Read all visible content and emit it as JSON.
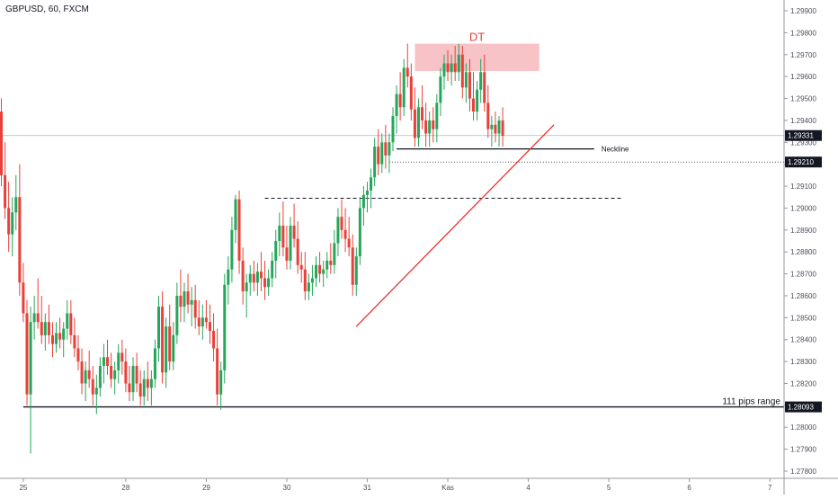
{
  "symbol_label": "GBPUSD, 60, FXCM",
  "colors": {
    "up": "#26a65b",
    "down": "#e8413a",
    "trendline": "#e8312e",
    "zone": "#f5a3a8",
    "zone_text": "#e8413a",
    "axis_text": "#4a4e59",
    "tag_bg": "#131722",
    "tag_text": "#ffffff",
    "grid": "#b2b5be"
  },
  "chart_data": {
    "type": "candlestick",
    "xlabel": "",
    "ylabel": "",
    "ylim": [
      1.277,
      1.2995
    ],
    "x_ticks": [
      {
        "label": "25",
        "index": 6
      },
      {
        "label": "28",
        "index": 34
      },
      {
        "label": "29",
        "index": 56
      },
      {
        "label": "30",
        "index": 78
      },
      {
        "label": "31",
        "index": 100
      },
      {
        "label": "Kas",
        "index": 122
      },
      {
        "label": "4",
        "index": 144
      },
      {
        "label": "5",
        "index": 166
      },
      {
        "label": "6",
        "index": 188
      },
      {
        "label": "7",
        "index": 210
      }
    ],
    "y_ticks": [
      "1.27800",
      "1.27900",
      "1.28000",
      "1.28100",
      "1.28200",
      "1.28300",
      "1.28400",
      "1.28500",
      "1.28600",
      "1.28700",
      "1.28800",
      "1.28900",
      "1.29000",
      "1.29100",
      "1.29200",
      "1.29300",
      "1.29400",
      "1.29500",
      "1.29600",
      "1.29700",
      "1.29800",
      "1.29900"
    ],
    "price_tags": [
      {
        "label": "1.29331",
        "value": 1.29331
      },
      {
        "label": "1.29210",
        "value": 1.2921
      },
      {
        "label": "1.28093",
        "value": 1.28093
      }
    ],
    "annotations": {
      "zone": {
        "label": "DT",
        "x_start": 113,
        "x_end": 147,
        "y_low": 1.29625,
        "y_high": 1.2975
      },
      "neckline": {
        "label": "Neckline",
        "x_start": 108,
        "x_end": 162,
        "y": 1.2927
      },
      "support": {
        "label": "111 pips range",
        "x_start": 6,
        "x_end": 232,
        "y": 1.28093
      },
      "resistance_dashed": {
        "x_start": 72,
        "x_end": 170,
        "y": 1.29045
      },
      "level_dotted": {
        "x_start": 106,
        "x_end": 232,
        "y": 1.2921
      },
      "trendline": {
        "x1": 97,
        "y1": 1.2846,
        "x2": 151,
        "y2": 1.2938
      }
    },
    "candles": [
      [
        0,
        1.2944,
        1.295,
        1.291,
        1.2915
      ],
      [
        1,
        1.2915,
        1.293,
        1.2895,
        1.29
      ],
      [
        2,
        1.29,
        1.2912,
        1.288,
        1.2888
      ],
      [
        3,
        1.2888,
        1.2905,
        1.2878,
        1.2898
      ],
      [
        4,
        1.2898,
        1.2915,
        1.289,
        1.2905
      ],
      [
        5,
        1.2905,
        1.292,
        1.286,
        1.2866
      ],
      [
        6,
        1.2866,
        1.2875,
        1.2848,
        1.2852
      ],
      [
        7,
        1.2852,
        1.2858,
        1.281,
        1.2815
      ],
      [
        8,
        1.2815,
        1.2855,
        1.2788,
        1.2848
      ],
      [
        9,
        1.2848,
        1.286,
        1.284,
        1.2852
      ],
      [
        10,
        1.2852,
        1.2868,
        1.2845,
        1.2848
      ],
      [
        11,
        1.2848,
        1.286,
        1.2838,
        1.2842
      ],
      [
        12,
        1.2842,
        1.2852,
        1.2835,
        1.2848
      ],
      [
        13,
        1.2848,
        1.2856,
        1.2838,
        1.2842
      ],
      [
        14,
        1.2842,
        1.2848,
        1.2832,
        1.2838
      ],
      [
        15,
        1.2838,
        1.2848,
        1.2834,
        1.2843
      ],
      [
        16,
        1.2843,
        1.285,
        1.2836,
        1.284
      ],
      [
        17,
        1.284,
        1.2848,
        1.2832,
        1.2845
      ],
      [
        18,
        1.2845,
        1.2858,
        1.284,
        1.2852
      ],
      [
        19,
        1.2852,
        1.2858,
        1.2838,
        1.2842
      ],
      [
        20,
        1.2842,
        1.285,
        1.2832,
        1.2836
      ],
      [
        21,
        1.2836,
        1.2842,
        1.2826,
        1.283
      ],
      [
        22,
        1.283,
        1.2836,
        1.2815,
        1.282
      ],
      [
        23,
        1.282,
        1.283,
        1.2812,
        1.2826
      ],
      [
        24,
        1.2826,
        1.2835,
        1.2818,
        1.2822
      ],
      [
        25,
        1.2822,
        1.2828,
        1.281,
        1.2815
      ],
      [
        26,
        1.2815,
        1.2824,
        1.2806,
        1.2818
      ],
      [
        27,
        1.2818,
        1.2832,
        1.2814,
        1.2828
      ],
      [
        28,
        1.2828,
        1.2838,
        1.282,
        1.2832
      ],
      [
        29,
        1.2832,
        1.284,
        1.2824,
        1.2828
      ],
      [
        30,
        1.2828,
        1.2834,
        1.2818,
        1.2822
      ],
      [
        31,
        1.2822,
        1.283,
        1.2815,
        1.2826
      ],
      [
        32,
        1.2826,
        1.2838,
        1.282,
        1.2834
      ],
      [
        33,
        1.2834,
        1.284,
        1.2824,
        1.283
      ],
      [
        34,
        1.283,
        1.2836,
        1.2816,
        1.282
      ],
      [
        35,
        1.282,
        1.2828,
        1.2812,
        1.2816
      ],
      [
        36,
        1.2816,
        1.2832,
        1.2812,
        1.2828
      ],
      [
        37,
        1.2828,
        1.2834,
        1.2816,
        1.282
      ],
      [
        38,
        1.282,
        1.2826,
        1.281,
        1.2814
      ],
      [
        39,
        1.2814,
        1.2826,
        1.281,
        1.2822
      ],
      [
        40,
        1.2822,
        1.283,
        1.2812,
        1.2818
      ],
      [
        41,
        1.2818,
        1.2826,
        1.281,
        1.2822
      ],
      [
        42,
        1.2822,
        1.284,
        1.2818,
        1.2836
      ],
      [
        43,
        1.2836,
        1.286,
        1.283,
        1.2855
      ],
      [
        44,
        1.2855,
        1.2862,
        1.282,
        1.2825
      ],
      [
        45,
        1.2825,
        1.285,
        1.2818,
        1.2846
      ],
      [
        46,
        1.2846,
        1.2856,
        1.2826,
        1.283
      ],
      [
        47,
        1.283,
        1.2848,
        1.2826,
        1.2842
      ],
      [
        48,
        1.2842,
        1.2866,
        1.2838,
        1.286
      ],
      [
        49,
        1.286,
        1.2872,
        1.2848,
        1.2855
      ],
      [
        50,
        1.2855,
        1.2866,
        1.2848,
        1.2862
      ],
      [
        51,
        1.2862,
        1.287,
        1.2852,
        1.2856
      ],
      [
        52,
        1.2856,
        1.2864,
        1.2846,
        1.2858
      ],
      [
        53,
        1.2858,
        1.2865,
        1.2845,
        1.285
      ],
      [
        54,
        1.285,
        1.2858,
        1.2842,
        1.2846
      ],
      [
        55,
        1.2846,
        1.2856,
        1.284,
        1.285
      ],
      [
        56,
        1.285,
        1.2858,
        1.2845,
        1.2848
      ],
      [
        57,
        1.2848,
        1.2856,
        1.2838,
        1.2844
      ],
      [
        58,
        1.2844,
        1.2852,
        1.283,
        1.2836
      ],
      [
        59,
        1.2836,
        1.2845,
        1.281,
        1.2815
      ],
      [
        60,
        1.2815,
        1.283,
        1.2808,
        1.2826
      ],
      [
        61,
        1.2826,
        1.287,
        1.282,
        1.2865
      ],
      [
        62,
        1.2865,
        1.2878,
        1.2856,
        1.2872
      ],
      [
        63,
        1.2872,
        1.2896,
        1.2866,
        1.289
      ],
      [
        64,
        1.289,
        1.2906,
        1.2884,
        1.2904
      ],
      [
        65,
        1.2904,
        1.2908,
        1.287,
        1.2876
      ],
      [
        66,
        1.2876,
        1.2882,
        1.2856,
        1.2862
      ],
      [
        67,
        1.2862,
        1.287,
        1.285,
        1.2866
      ],
      [
        68,
        1.2866,
        1.2874,
        1.286,
        1.287
      ],
      [
        69,
        1.287,
        1.2876,
        1.2862,
        1.2866
      ],
      [
        70,
        1.2866,
        1.2875,
        1.286,
        1.2871
      ],
      [
        71,
        1.2871,
        1.288,
        1.2862,
        1.2868
      ],
      [
        72,
        1.2868,
        1.2876,
        1.2858,
        1.2864
      ],
      [
        73,
        1.2864,
        1.2872,
        1.286,
        1.2868
      ],
      [
        74,
        1.2868,
        1.288,
        1.2864,
        1.2876
      ],
      [
        75,
        1.2876,
        1.289,
        1.2868,
        1.2885
      ],
      [
        76,
        1.2885,
        1.2898,
        1.2878,
        1.2892
      ],
      [
        77,
        1.2892,
        1.2903,
        1.2878,
        1.2882
      ],
      [
        78,
        1.2882,
        1.2892,
        1.2872,
        1.2876
      ],
      [
        79,
        1.2876,
        1.2896,
        1.2872,
        1.2892
      ],
      [
        80,
        1.2892,
        1.2902,
        1.2882,
        1.2886
      ],
      [
        81,
        1.2886,
        1.2894,
        1.287,
        1.2874
      ],
      [
        82,
        1.2874,
        1.288,
        1.2866,
        1.2872
      ],
      [
        83,
        1.2872,
        1.288,
        1.2858,
        1.2862
      ],
      [
        84,
        1.2862,
        1.287,
        1.2858,
        1.2866
      ],
      [
        85,
        1.2866,
        1.2874,
        1.286,
        1.2868
      ],
      [
        86,
        1.2868,
        1.2878,
        1.2864,
        1.2874
      ],
      [
        87,
        1.2874,
        1.288,
        1.2866,
        1.287
      ],
      [
        88,
        1.287,
        1.2876,
        1.2864,
        1.2872
      ],
      [
        89,
        1.2872,
        1.288,
        1.2868,
        1.2876
      ],
      [
        90,
        1.2876,
        1.2884,
        1.287,
        1.2874
      ],
      [
        91,
        1.2874,
        1.289,
        1.287,
        1.2884
      ],
      [
        92,
        1.2884,
        1.29,
        1.2878,
        1.2896
      ],
      [
        93,
        1.2896,
        1.2904,
        1.2886,
        1.289
      ],
      [
        94,
        1.289,
        1.29,
        1.288,
        1.2886
      ],
      [
        95,
        1.2886,
        1.2896,
        1.2878,
        1.2882
      ],
      [
        96,
        1.2882,
        1.2888,
        1.286,
        1.2865
      ],
      [
        97,
        1.2865,
        1.2882,
        1.286,
        1.2878
      ],
      [
        98,
        1.2878,
        1.2905,
        1.2874,
        1.29
      ],
      [
        99,
        1.29,
        1.291,
        1.2892,
        1.2906
      ],
      [
        100,
        1.2906,
        1.2912,
        1.2898,
        1.2908
      ],
      [
        101,
        1.2908,
        1.2918,
        1.29,
        1.2914
      ],
      [
        102,
        1.2914,
        1.2932,
        1.291,
        1.2928
      ],
      [
        103,
        1.2928,
        1.2936,
        1.2915,
        1.292
      ],
      [
        104,
        1.292,
        1.2934,
        1.2916,
        1.293
      ],
      [
        105,
        1.293,
        1.2938,
        1.2918,
        1.2924
      ],
      [
        106,
        1.2924,
        1.2934,
        1.2916,
        1.293
      ],
      [
        107,
        1.293,
        1.2946,
        1.2926,
        1.2942
      ],
      [
        108,
        1.2942,
        1.2956,
        1.2934,
        1.2952
      ],
      [
        109,
        1.2952,
        1.2962,
        1.294,
        1.2946
      ],
      [
        110,
        1.2946,
        1.2968,
        1.2942,
        1.2964
      ],
      [
        111,
        1.2964,
        1.2975,
        1.2955,
        1.296
      ],
      [
        112,
        1.296,
        1.2966,
        1.294,
        1.2945
      ],
      [
        113,
        1.2945,
        1.2955,
        1.2928,
        1.2932
      ],
      [
        114,
        1.2932,
        1.295,
        1.2928,
        1.2946
      ],
      [
        115,
        1.2946,
        1.2956,
        1.2936,
        1.294
      ],
      [
        116,
        1.294,
        1.2948,
        1.2928,
        1.2934
      ],
      [
        117,
        1.2934,
        1.2944,
        1.2928,
        1.294
      ],
      [
        118,
        1.294,
        1.2946,
        1.293,
        1.2936
      ],
      [
        119,
        1.2936,
        1.2952,
        1.293,
        1.2948
      ],
      [
        120,
        1.2948,
        1.2964,
        1.2942,
        1.296
      ],
      [
        121,
        1.296,
        1.297,
        1.2954,
        1.2966
      ],
      [
        122,
        1.2966,
        1.2972,
        1.2958,
        1.2962
      ],
      [
        123,
        1.2962,
        1.297,
        1.2956,
        1.2966
      ],
      [
        124,
        1.2966,
        1.2974,
        1.2958,
        1.2962
      ],
      [
        125,
        1.2962,
        1.2975,
        1.2958,
        1.297
      ],
      [
        126,
        1.297,
        1.2974,
        1.295,
        1.2955
      ],
      [
        127,
        1.2955,
        1.2966,
        1.2948,
        1.2962
      ],
      [
        128,
        1.2962,
        1.2968,
        1.2944,
        1.295
      ],
      [
        129,
        1.295,
        1.2962,
        1.294,
        1.2944
      ],
      [
        130,
        1.2944,
        1.2958,
        1.294,
        1.2954
      ],
      [
        131,
        1.2954,
        1.2968,
        1.2948,
        1.2962
      ],
      [
        132,
        1.2962,
        1.297,
        1.2944,
        1.2948
      ],
      [
        133,
        1.2948,
        1.2956,
        1.2932,
        1.2936
      ],
      [
        134,
        1.2936,
        1.2942,
        1.2928,
        1.2938
      ],
      [
        135,
        1.2938,
        1.2944,
        1.293,
        1.2934
      ],
      [
        136,
        1.2934,
        1.2942,
        1.2928,
        1.294
      ],
      [
        137,
        1.294,
        1.2946,
        1.2928,
        1.2933
      ]
    ]
  }
}
